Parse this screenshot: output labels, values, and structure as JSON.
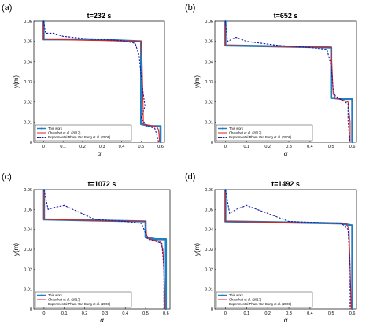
{
  "figure": {
    "panel_letters": [
      "(a)",
      "(b)",
      "(c)",
      "(d)"
    ]
  },
  "colors": {
    "this_work": "#1f7fc0",
    "chauchat": "#e0201b",
    "experimental": "#1a1aa8"
  },
  "legend": [
    "This work",
    "Chauchat et al. (2017)",
    "Experimental Pham Van Bang et al. (2008)"
  ],
  "chart_data": [
    {
      "type": "line",
      "title": "t=232 s",
      "xlabel": "α",
      "ylabel": "y(m)",
      "xlim": [
        -0.05,
        0.62
      ],
      "ylim": [
        0,
        0.06
      ],
      "xticks": [
        "0",
        "0.1",
        "0.2",
        "0.3",
        "0.4",
        "0.5",
        "0.6"
      ],
      "yticks": [
        "0",
        "0.01",
        "0.02",
        "0.03",
        "0.04",
        "0.05",
        "0.06"
      ],
      "legend_position": "bottom-left",
      "series": [
        {
          "name": "This work",
          "style": "solid-markers",
          "x": [
            0,
            0,
            0,
            0.25,
            0.5,
            0.5,
            0.5,
            0.5,
            0.5,
            0.55,
            0.6,
            0.6,
            0.6
          ],
          "y": [
            0.06,
            0.055,
            0.051,
            0.051,
            0.05,
            0.04,
            0.025,
            0.015,
            0.009,
            0.008,
            0.008,
            0.004,
            0
          ]
        },
        {
          "name": "Chauchat et al. (2017)",
          "style": "solid",
          "x": [
            0,
            0,
            0.25,
            0.5,
            0.505,
            0.51,
            0.512,
            0.53,
            0.58,
            0.59,
            0.595
          ],
          "y": [
            0.06,
            0.051,
            0.0505,
            0.05,
            0.04,
            0.02,
            0.009,
            0.0085,
            0.008,
            0.006,
            0
          ]
        },
        {
          "name": "Experimental Pham Van Bang et al. (2008)",
          "style": "dashed",
          "x": [
            0,
            0.01,
            0.05,
            0.1,
            0.25,
            0.4,
            0.47,
            0.49,
            0.5,
            0.51,
            0.52,
            0.5,
            0.53,
            0.57,
            0.58,
            0.59
          ],
          "y": [
            0.06,
            0.054,
            0.054,
            0.0525,
            0.051,
            0.0505,
            0.049,
            0.043,
            0.033,
            0.025,
            0.018,
            0.012,
            0.008,
            0.007,
            0.004,
            0
          ]
        }
      ]
    },
    {
      "type": "line",
      "title": "t=652 s",
      "xlabel": "α",
      "ylabel": "y(m)",
      "xlim": [
        -0.05,
        0.62
      ],
      "ylim": [
        0,
        0.06
      ],
      "xticks": [
        "0",
        "0.1",
        "0.2",
        "0.3",
        "0.4",
        "0.5",
        "0.6"
      ],
      "yticks": [
        "0",
        "0.01",
        "0.02",
        "0.03",
        "0.04",
        "0.05",
        "0.06"
      ],
      "legend_position": "bottom-left",
      "series": [
        {
          "name": "This work",
          "style": "solid-markers",
          "x": [
            0,
            0,
            0,
            0.25,
            0.5,
            0.5,
            0.5,
            0.5,
            0.55,
            0.6,
            0.6,
            0.6
          ],
          "y": [
            0.06,
            0.055,
            0.048,
            0.0475,
            0.047,
            0.035,
            0.024,
            0.022,
            0.0215,
            0.0215,
            0.01,
            0
          ]
        },
        {
          "name": "Chauchat et al. (2017)",
          "style": "solid",
          "x": [
            0,
            0,
            0.25,
            0.5,
            0.505,
            0.51,
            0.52,
            0.55,
            0.58,
            0.59,
            0.59
          ],
          "y": [
            0.06,
            0.048,
            0.0475,
            0.047,
            0.035,
            0.024,
            0.022,
            0.021,
            0.02,
            0.01,
            0
          ]
        },
        {
          "name": "Experimental Pham Van Bang et al. (2008)",
          "style": "dashed",
          "x": [
            0,
            0.01,
            0.05,
            0.1,
            0.25,
            0.4,
            0.48,
            0.5,
            0.51,
            0.52,
            0.55,
            0.58,
            0.58,
            0.59
          ],
          "y": [
            0.06,
            0.05,
            0.052,
            0.05,
            0.048,
            0.047,
            0.046,
            0.038,
            0.026,
            0.023,
            0.021,
            0.019,
            0.01,
            0
          ]
        }
      ]
    },
    {
      "type": "line",
      "title": "t=1072 s",
      "xlabel": "α",
      "ylabel": "y(m)",
      "xlim": [
        -0.05,
        0.62
      ],
      "ylim": [
        0,
        0.06
      ],
      "xticks": [
        "0",
        "0.1",
        "0.2",
        "0.3",
        "0.4",
        "0.5",
        "0.6"
      ],
      "yticks": [
        "0",
        "0.01",
        "0.02",
        "0.03",
        "0.04",
        "0.05",
        "0.06"
      ],
      "legend_position": "bottom-left",
      "series": [
        {
          "name": "This work",
          "style": "solid-markers",
          "x": [
            0,
            0,
            0,
            0.25,
            0.5,
            0.5,
            0.5,
            0.55,
            0.6,
            0.6,
            0.6
          ],
          "y": [
            0.06,
            0.052,
            0.045,
            0.0445,
            0.044,
            0.04,
            0.036,
            0.035,
            0.035,
            0.02,
            0
          ]
        },
        {
          "name": "Chauchat et al. (2017)",
          "style": "solid",
          "x": [
            0,
            0,
            0.25,
            0.5,
            0.505,
            0.52,
            0.57,
            0.585,
            0.59,
            0.595
          ],
          "y": [
            0.06,
            0.045,
            0.0445,
            0.044,
            0.037,
            0.035,
            0.034,
            0.03,
            0.02,
            0
          ]
        },
        {
          "name": "Experimental Pham Van Bang et al. (2008)",
          "style": "dashed",
          "x": [
            0,
            0.02,
            0.05,
            0.1,
            0.25,
            0.4,
            0.48,
            0.5,
            0.51,
            0.55,
            0.58,
            0.59,
            0.59
          ],
          "y": [
            0.06,
            0.05,
            0.051,
            0.052,
            0.045,
            0.044,
            0.043,
            0.038,
            0.035,
            0.034,
            0.033,
            0.02,
            0
          ]
        }
      ]
    },
    {
      "type": "line",
      "title": "t=1492 s",
      "xlabel": "α",
      "ylabel": "y(m)",
      "xlim": [
        -0.05,
        0.62
      ],
      "ylim": [
        0,
        0.06
      ],
      "xticks": [
        "0",
        "0.1",
        "0.2",
        "0.3",
        "0.4",
        "0.5",
        "0.6"
      ],
      "yticks": [
        "0",
        "0.01",
        "0.02",
        "0.03",
        "0.04",
        "0.05",
        "0.06"
      ],
      "legend_position": "bottom-left",
      "series": [
        {
          "name": "This work",
          "style": "solid-markers",
          "x": [
            0,
            0,
            0,
            0.3,
            0.55,
            0.6,
            0.6,
            0.6
          ],
          "y": [
            0.06,
            0.05,
            0.044,
            0.0435,
            0.043,
            0.042,
            0.02,
            0
          ]
        },
        {
          "name": "Chauchat et al. (2017)",
          "style": "solid",
          "x": [
            0,
            0,
            0.3,
            0.57,
            0.585,
            0.59,
            0.595
          ],
          "y": [
            0.06,
            0.044,
            0.0435,
            0.043,
            0.04,
            0.02,
            0
          ]
        },
        {
          "name": "Experimental Pham Van Bang et al. (2008)",
          "style": "dashed",
          "x": [
            0,
            0.02,
            0.05,
            0.1,
            0.3,
            0.55,
            0.58,
            0.59,
            0.59
          ],
          "y": [
            0.06,
            0.048,
            0.05,
            0.052,
            0.044,
            0.043,
            0.04,
            0.02,
            0
          ]
        }
      ]
    }
  ]
}
